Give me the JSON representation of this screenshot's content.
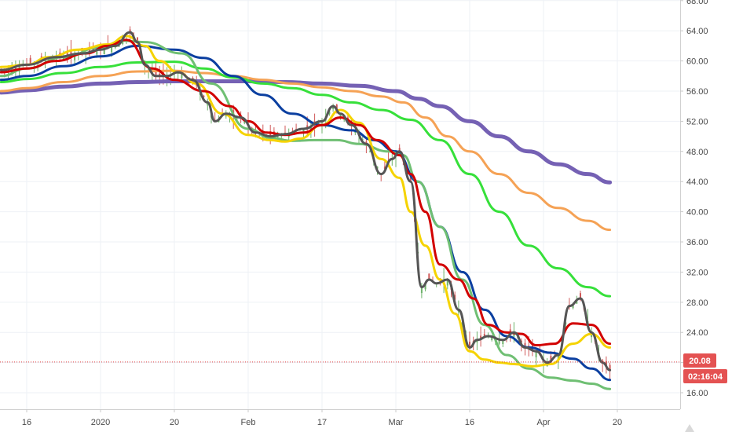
{
  "chart_data": {
    "type": "line",
    "symbol_price": 20.08,
    "countdown": "02:16:04",
    "colors": {
      "price": "#555555",
      "candle_up": "#6fb26b",
      "candle_down": "#d05a5a",
      "dotted_price_line": "#e04040",
      "price_tag_bg": "#e45252",
      "countdown_tag_bg": "#e45252"
    },
    "ylim": [
      15,
      68
    ],
    "y_ticks": [
      "16.00",
      "20.00",
      "24.00",
      "28.00",
      "32.00",
      "36.00",
      "40.00",
      "44.00",
      "48.00",
      "52.00",
      "56.00",
      "60.00",
      "64.00",
      "68.00"
    ],
    "x_ticks": [
      "16",
      "2020",
      "20",
      "Feb",
      "17",
      "Mar",
      "16",
      "Apr",
      "20"
    ],
    "x_tick_index": [
      0,
      20,
      40,
      60,
      80,
      100,
      120,
      140,
      160
    ],
    "grid": true,
    "series": [
      {
        "color": "#f5d300",
        "width": 3,
        "x": [
          -7,
          0,
          6,
          14,
          22,
          27,
          32,
          36,
          41,
          46,
          53,
          60,
          66,
          70,
          74,
          80,
          85,
          90,
          96,
          101,
          104,
          108,
          112,
          116,
          120,
          124,
          128,
          132,
          137,
          142,
          148,
          153,
          158
        ],
        "values": [
          59.2,
          59.5,
          60.5,
          61.5,
          62.2,
          63.3,
          62.0,
          60.0,
          58.5,
          57.0,
          53.0,
          50.2,
          49.5,
          49.3,
          49.7,
          51.5,
          53.5,
          51.8,
          47.0,
          44.5,
          40.0,
          35.5,
          31.0,
          26.5,
          21.5,
          20.4,
          20.0,
          19.8,
          19.5,
          19.8,
          22.5,
          23.8,
          22.0
        ]
      },
      {
        "color": "#d20000",
        "width": 3,
        "x": [
          -7,
          0,
          8,
          16,
          22,
          27,
          34,
          40,
          48,
          55,
          60,
          65,
          70,
          75,
          80,
          85,
          90,
          95,
          101,
          104,
          108,
          112,
          117,
          121,
          125,
          130,
          134,
          138,
          143,
          148,
          153,
          158
        ],
        "values": [
          58.5,
          59.0,
          60.0,
          61.0,
          62.0,
          62.8,
          59.0,
          57.5,
          56.0,
          54.0,
          52.0,
          50.5,
          50.2,
          50.5,
          51.5,
          52.5,
          51.5,
          49.5,
          47.5,
          45.0,
          40.0,
          33.0,
          31.0,
          28.5,
          25.0,
          24.0,
          23.8,
          22.3,
          22.5,
          25.2,
          25.0,
          22.5
        ]
      },
      {
        "color": "#555555",
        "width": 3,
        "x": [
          -7,
          0,
          8,
          15,
          20,
          24,
          28,
          30,
          32,
          35,
          38,
          41,
          45,
          49,
          51,
          54,
          58,
          62,
          66,
          70,
          75,
          80,
          83,
          85,
          88,
          92,
          96,
          99,
          101,
          104,
          107,
          109,
          111,
          114,
          117,
          120,
          122,
          125,
          129,
          132,
          135,
          138,
          141,
          144,
          147,
          150,
          153,
          156,
          158
        ],
        "values": [
          58.8,
          59.5,
          60.5,
          61.0,
          61.5,
          62.0,
          63.8,
          62.5,
          59.5,
          58.0,
          58.0,
          58.5,
          57.5,
          54.5,
          52.0,
          53.0,
          52.5,
          50.5,
          50.0,
          50.3,
          51.0,
          52.0,
          54.0,
          53.0,
          51.5,
          49.0,
          45.0,
          47.0,
          48.0,
          44.0,
          30.0,
          31.0,
          30.5,
          31.0,
          27.0,
          22.0,
          23.0,
          23.5,
          23.0,
          24.0,
          22.0,
          21.5,
          20.0,
          21.0,
          27.5,
          28.5,
          24.0,
          20.0,
          19.0
        ]
      },
      {
        "color": "#6fbf73",
        "width": 3,
        "x": [
          -7,
          0,
          10,
          20,
          26,
          32,
          42,
          50,
          60,
          66,
          72,
          78,
          84,
          90,
          98,
          102,
          106,
          112,
          118,
          124,
          130,
          136,
          142,
          148,
          153,
          158
        ],
        "values": [
          58.0,
          59.0,
          60.5,
          61.8,
          62.7,
          62.5,
          61.0,
          57.0,
          51.0,
          49.8,
          49.4,
          49.5,
          49.5,
          49.0,
          48.0,
          47.5,
          44.0,
          38.0,
          31.0,
          25.0,
          21.0,
          19.2,
          18.0,
          17.6,
          17.2,
          16.5
        ]
      },
      {
        "color": "#0b3fa0",
        "width": 3,
        "x": [
          -7,
          0,
          10,
          20,
          30,
          40,
          48,
          56,
          64,
          72,
          80,
          88,
          94,
          100,
          106,
          112,
          118,
          124,
          130,
          136,
          142,
          148,
          153,
          158
        ],
        "values": [
          57.5,
          58.0,
          59.3,
          60.6,
          62.0,
          61.5,
          60.4,
          58.0,
          55.5,
          53.0,
          51.5,
          50.8,
          49.5,
          48.0,
          44.0,
          38.0,
          32.0,
          27.0,
          23.5,
          22.0,
          21.3,
          20.5,
          19.2,
          17.7
        ]
      },
      {
        "color": "#36e03a",
        "width": 3,
        "x": [
          -7,
          0,
          10,
          20,
          30,
          40,
          48,
          56,
          64,
          72,
          80,
          88,
          96,
          104,
          112,
          120,
          128,
          136,
          144,
          152,
          158
        ],
        "values": [
          57.2,
          57.6,
          58.4,
          59.2,
          59.8,
          59.9,
          59.0,
          57.8,
          57.0,
          56.4,
          55.5,
          54.5,
          53.5,
          52.2,
          49.5,
          45.0,
          40.0,
          35.5,
          32.5,
          30.0,
          28.8
        ]
      },
      {
        "color": "#f5a255",
        "width": 3,
        "x": [
          -7,
          0,
          10,
          20,
          30,
          40,
          48,
          56,
          64,
          72,
          80,
          88,
          96,
          102,
          108,
          114,
          120,
          128,
          136,
          144,
          152,
          158
        ],
        "values": [
          56.0,
          56.4,
          57.2,
          58.0,
          58.6,
          58.7,
          58.4,
          58.0,
          57.5,
          57.0,
          56.5,
          56.0,
          55.3,
          54.5,
          52.5,
          50.0,
          48.0,
          45.0,
          42.5,
          40.5,
          38.8,
          37.6
        ]
      },
      {
        "color": "#7561b4",
        "width": 5,
        "x": [
          -7,
          0,
          10,
          20,
          30,
          40,
          50,
          60,
          70,
          80,
          90,
          100,
          106,
          112,
          120,
          128,
          136,
          144,
          152,
          158
        ],
        "values": [
          55.8,
          56.1,
          56.6,
          57.0,
          57.2,
          57.3,
          57.3,
          57.3,
          57.2,
          57.0,
          56.7,
          56.0,
          55.0,
          54.0,
          52.0,
          50.0,
          48.0,
          46.3,
          45.0,
          43.9
        ]
      }
    ]
  }
}
